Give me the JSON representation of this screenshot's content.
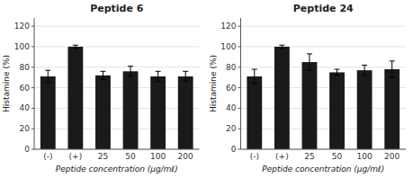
{
  "chart_data": [
    {
      "type": "bar",
      "title": "Peptide 6",
      "categories": [
        "(-)",
        "(+)",
        "25",
        "50",
        "100",
        "200"
      ],
      "values": [
        71,
        100,
        72,
        76,
        71,
        71
      ],
      "errors": [
        6,
        1.5,
        4,
        5,
        5,
        5
      ],
      "color": "#1a1a1a",
      "xlabel": "Peptide concentration (μg/mℓ)",
      "ylabel": "Histamine (%)",
      "ylim": [
        0,
        128
      ],
      "yticks": [
        0,
        20,
        40,
        60,
        80,
        100,
        120
      ]
    },
    {
      "type": "bar",
      "title": "Peptide 24",
      "categories": [
        "(-)",
        "(+)",
        "25",
        "50",
        "100",
        "200"
      ],
      "values": [
        71,
        100,
        85,
        75,
        77,
        78
      ],
      "errors": [
        7,
        1.5,
        8,
        3,
        5,
        8
      ],
      "color": "#1a1a1a",
      "xlabel": "Peptide concentration (μg/mℓ)",
      "ylabel": "Histamine (%)",
      "ylim": [
        0,
        128
      ],
      "yticks": [
        0,
        20,
        40,
        60,
        80,
        100,
        120
      ]
    }
  ]
}
